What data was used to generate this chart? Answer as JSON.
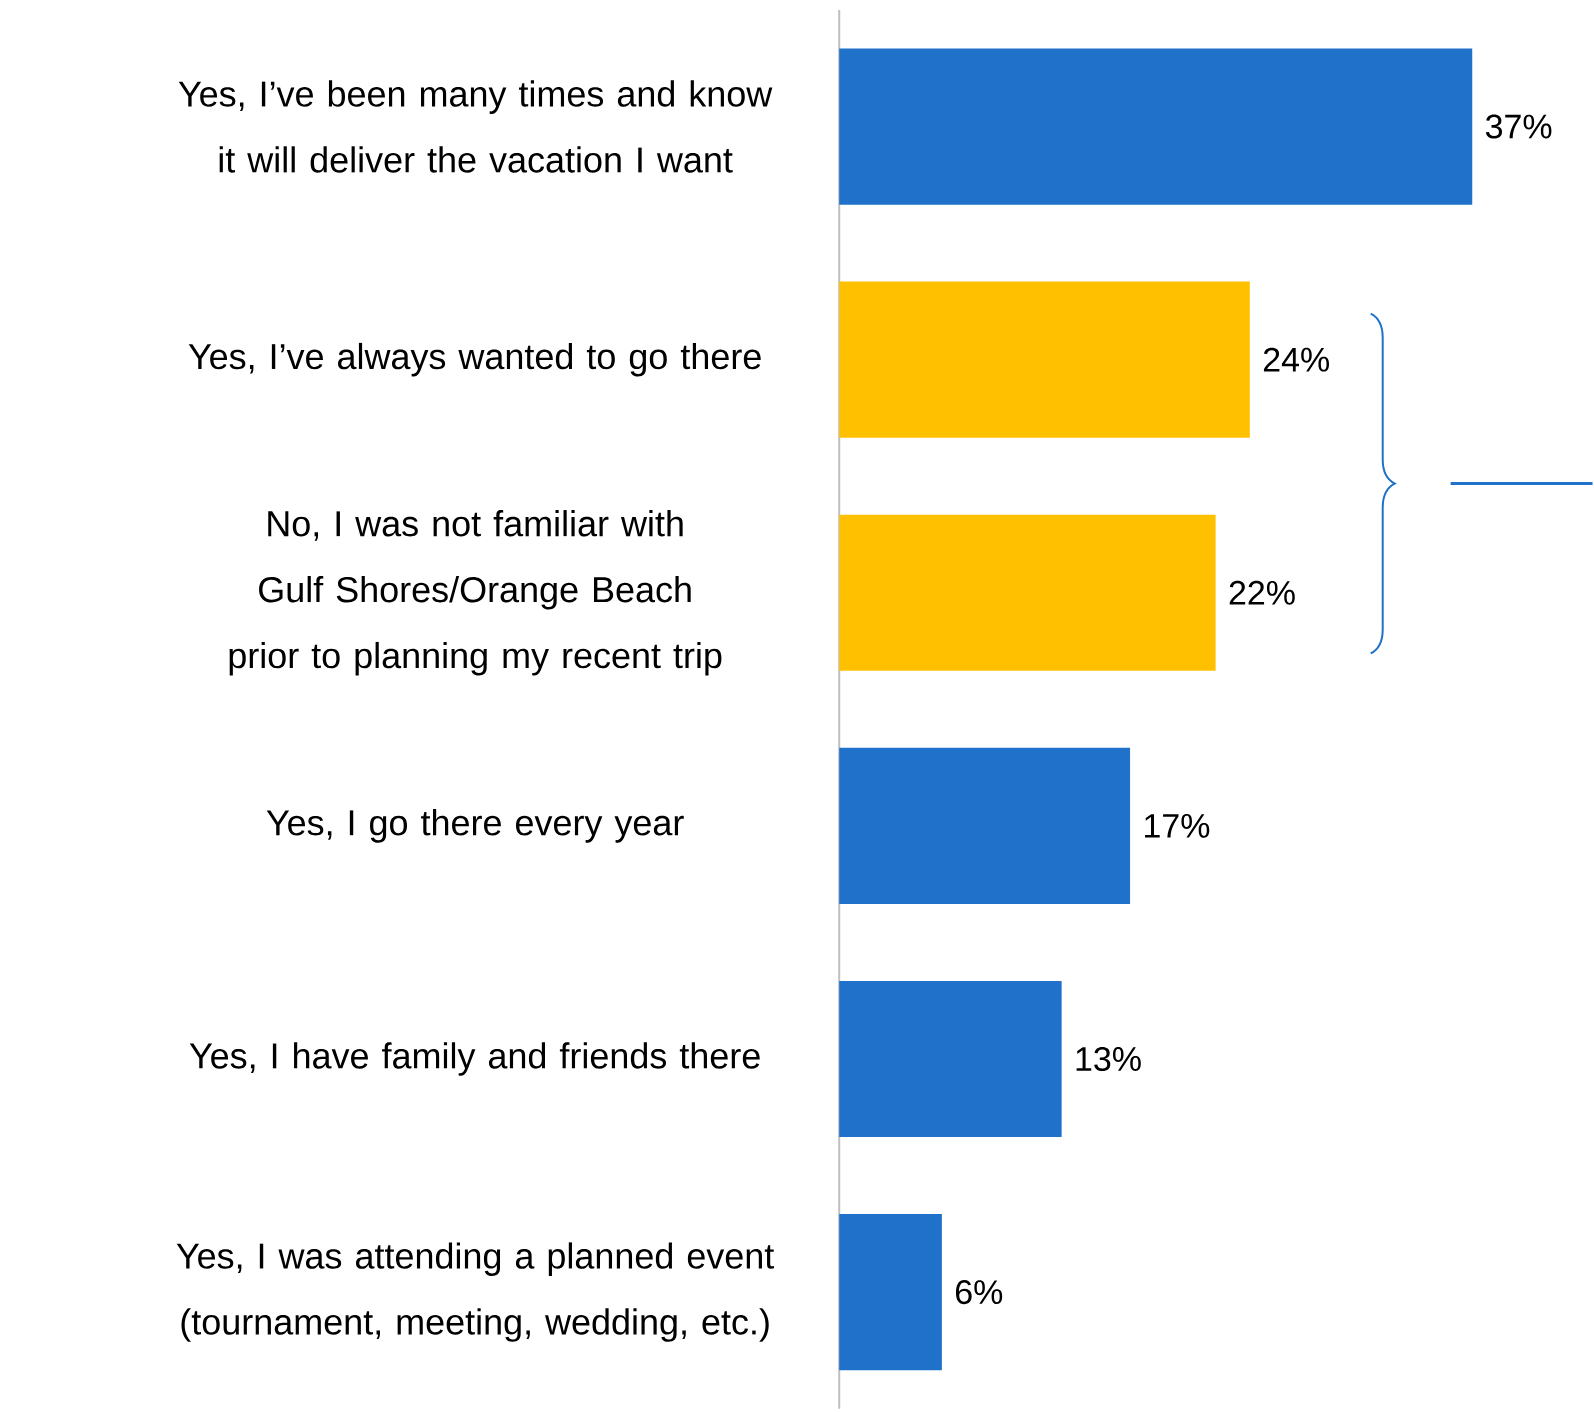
{
  "chart_data": {
    "type": "bar",
    "orientation": "horizontal",
    "categories": [
      "Yes, I’ve been many times and know it will deliver the vacation I want",
      "Yes, I’ve always wanted to go there",
      "No, I was not familiar with Gulf Shores/Orange Beach prior to planning my recent trip",
      "Yes, I go there every year",
      "Yes, I have family and friends there",
      "Yes, I was attending a planned event (tournament, meeting, wedding, etc.)"
    ],
    "values": [
      37,
      24,
      22,
      17,
      13,
      6
    ],
    "value_labels": [
      "37%",
      "24%",
      "22%",
      "17%",
      "13%",
      "6%"
    ],
    "colors": [
      "#1f71c9",
      "#ffc000",
      "#ffc000",
      "#1f71c9",
      "#1f71c9",
      "#1f71c9"
    ]
  }
}
